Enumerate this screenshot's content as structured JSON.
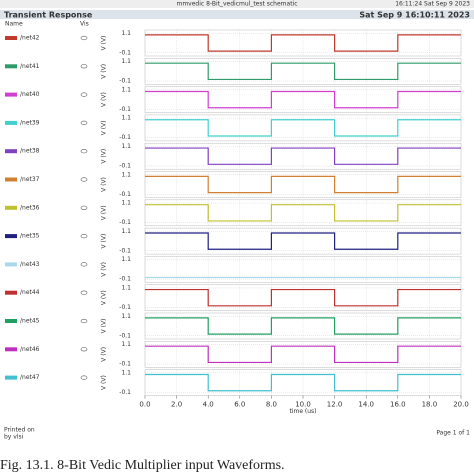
{
  "header": {
    "window_title": "mmvedic 8-Bit_vedicmul_test schematic",
    "window_time": "16:11:24  Sat Sep 9 2023",
    "panel_title": "Transient Response",
    "panel_time": "Sat Sep 9 16:10:11 2023",
    "col_name": "Name",
    "col_vis": "Vis"
  },
  "chart_data": [
    {
      "type": "line",
      "name": "/net42",
      "color": "#c0392b",
      "x": [
        0,
        4,
        4,
        8,
        8,
        12,
        12,
        16,
        16,
        20
      ],
      "values": [
        1,
        1,
        0,
        0,
        1,
        1,
        0,
        0,
        1,
        1
      ],
      "ylabel": "V (V)",
      "ylim": [
        -0.3,
        1.3
      ],
      "yticks": [
        1.1,
        -0.1
      ],
      "grid": true
    },
    {
      "type": "line",
      "name": "/net41",
      "color": "#2e9b6a",
      "x": [
        0,
        4,
        4,
        8,
        8,
        12,
        12,
        16,
        16,
        20
      ],
      "values": [
        1,
        1,
        0,
        0,
        1,
        1,
        0,
        0,
        1,
        1
      ],
      "ylabel": "V (V)",
      "ylim": [
        -0.3,
        1.3
      ],
      "yticks": [
        1.1,
        -0.1
      ],
      "grid": true
    },
    {
      "type": "line",
      "name": "/net40",
      "color": "#d040d0",
      "x": [
        0,
        4,
        4,
        8,
        8,
        12,
        12,
        16,
        16,
        20
      ],
      "values": [
        1,
        1,
        0,
        0,
        1,
        1,
        0,
        0,
        1,
        1
      ],
      "ylabel": "V (V)",
      "ylim": [
        -0.3,
        1.3
      ],
      "yticks": [
        1.1,
        -0.1
      ],
      "grid": true
    },
    {
      "type": "line",
      "name": "/net39",
      "color": "#40d0d0",
      "x": [
        0,
        4,
        4,
        8,
        8,
        12,
        12,
        16,
        16,
        20
      ],
      "values": [
        1,
        1,
        0,
        0,
        1,
        1,
        0,
        0,
        1,
        1
      ],
      "ylabel": "V (V)",
      "ylim": [
        -0.3,
        1.3
      ],
      "yticks": [
        1.1,
        -0.1
      ],
      "grid": true
    },
    {
      "type": "line",
      "name": "/net38",
      "color": "#8040c0",
      "x": [
        0,
        4,
        4,
        8,
        8,
        12,
        12,
        16,
        16,
        20
      ],
      "values": [
        1,
        1,
        0,
        0,
        1,
        1,
        0,
        0,
        1,
        1
      ],
      "ylabel": "V (V)",
      "ylim": [
        -0.3,
        1.3
      ],
      "yticks": [
        1.1,
        -0.1
      ],
      "grid": true
    },
    {
      "type": "line",
      "name": "/net37",
      "color": "#d08030",
      "x": [
        0,
        4,
        4,
        8,
        8,
        12,
        12,
        16,
        16,
        20
      ],
      "values": [
        1,
        1,
        0,
        0,
        1,
        1,
        0,
        0,
        1,
        1
      ],
      "ylabel": "V (V)",
      "ylim": [
        -0.3,
        1.3
      ],
      "yticks": [
        1.1,
        -0.1
      ],
      "grid": true
    },
    {
      "type": "line",
      "name": "/net36",
      "color": "#c0c030",
      "x": [
        0,
        4,
        4,
        8,
        8,
        12,
        12,
        16,
        16,
        20
      ],
      "values": [
        1,
        1,
        0,
        0,
        1,
        1,
        0,
        0,
        1,
        1
      ],
      "ylabel": "V (V)",
      "ylim": [
        -0.3,
        1.3
      ],
      "yticks": [
        1.1,
        -0.1
      ],
      "grid": true
    },
    {
      "type": "line",
      "name": "/net35",
      "color": "#202080",
      "x": [
        0,
        4,
        4,
        8,
        8,
        12,
        12,
        16,
        16,
        20
      ],
      "values": [
        1,
        1,
        0,
        0,
        1,
        1,
        0,
        0,
        1,
        1
      ],
      "ylabel": "V (V)",
      "ylim": [
        -0.3,
        1.3
      ],
      "yticks": [
        1.1,
        -0.1
      ],
      "grid": true
    },
    {
      "type": "line",
      "name": "/net43",
      "color": "#a8d8ec",
      "x": [
        0,
        20
      ],
      "values": [
        0,
        0
      ],
      "ylabel": "V (V)",
      "ylim": [
        -0.3,
        1.3
      ],
      "yticks": [
        1.1,
        -0.1
      ],
      "grid": true
    },
    {
      "type": "line",
      "name": "/net44",
      "color": "#c03030",
      "x": [
        0,
        4,
        4,
        8,
        8,
        12,
        12,
        16,
        16,
        20
      ],
      "values": [
        1,
        1,
        0,
        0,
        1,
        1,
        0,
        0,
        1,
        1
      ],
      "ylabel": "V (V)",
      "ylim": [
        -0.3,
        1.3
      ],
      "yticks": [
        1.1,
        -0.1
      ],
      "grid": true
    },
    {
      "type": "line",
      "name": "/net45",
      "color": "#20a060",
      "x": [
        0,
        4,
        4,
        8,
        8,
        12,
        12,
        16,
        16,
        20
      ],
      "values": [
        1,
        1,
        0,
        0,
        1,
        1,
        0,
        0,
        1,
        1
      ],
      "ylabel": "V (V)",
      "ylim": [
        -0.3,
        1.3
      ],
      "yticks": [
        1.1,
        -0.1
      ],
      "grid": true
    },
    {
      "type": "line",
      "name": "/net46",
      "color": "#c030c0",
      "x": [
        0,
        4,
        4,
        8,
        8,
        12,
        12,
        16,
        16,
        20
      ],
      "values": [
        1,
        1,
        0,
        0,
        1,
        1,
        0,
        0,
        1,
        1
      ],
      "ylabel": "V (V)",
      "ylim": [
        -0.3,
        1.3
      ],
      "yticks": [
        1.1,
        -0.1
      ],
      "grid": true
    },
    {
      "type": "line",
      "name": "/net47",
      "color": "#40c0d0",
      "x": [
        0,
        4,
        4,
        8,
        8,
        12,
        12,
        16,
        16,
        20
      ],
      "values": [
        1,
        1,
        0,
        0,
        1,
        1,
        0,
        0,
        1,
        1
      ],
      "ylabel": "V (V)",
      "ylim": [
        -0.3,
        1.3
      ],
      "yticks": [
        1.1,
        -0.1
      ],
      "grid": true,
      "xlabel": "time (us)",
      "xlim": [
        0,
        20
      ],
      "xticks": [
        {
          "value": 0,
          "label": "0.0"
        },
        {
          "value": 2,
          "label": "2.0"
        },
        {
          "value": 4,
          "label": "4.0"
        },
        {
          "value": 6,
          "label": "6.0"
        },
        {
          "value": 8,
          "label": "8.0"
        },
        {
          "value": 10,
          "label": "10.0"
        },
        {
          "value": 12,
          "label": "12.0"
        },
        {
          "value": 14,
          "label": "14.0"
        },
        {
          "value": 16,
          "label": "16.0"
        },
        {
          "value": 18,
          "label": "18.0"
        },
        {
          "value": 20,
          "label": "20.0"
        }
      ]
    }
  ],
  "footer": {
    "printed_on": "Printed on",
    "printed_by": "by vlsi",
    "page": "Page 1 of 1"
  },
  "caption": "Fig. 13.1.  8-Bit Vedic Multiplier input Waveforms."
}
